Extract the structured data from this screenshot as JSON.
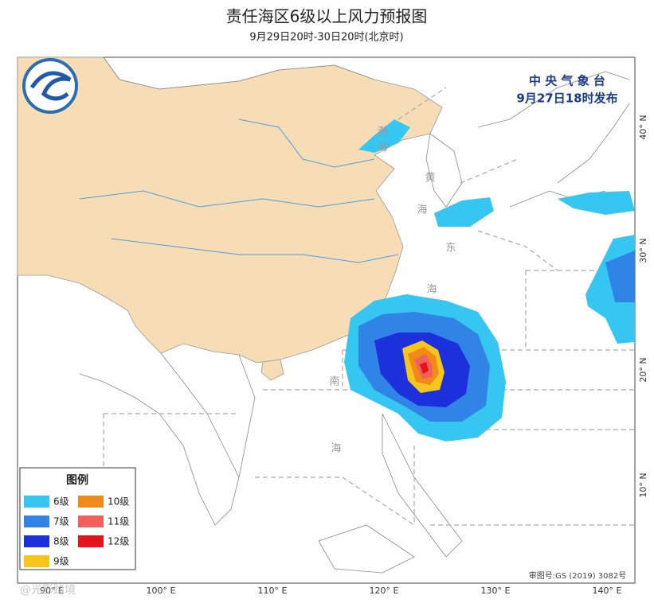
{
  "header": {
    "title": "责任海区6级以上风力预报图",
    "subtitle": "9月29日20时-30日20时(北京时)"
  },
  "issuer": {
    "agency": "中 央 气 象 台",
    "issued": "9月27日18时发布"
  },
  "map": {
    "longitude_labels": [
      "90° E",
      "100° E",
      "110° E",
      "120° E",
      "130° E",
      "140° E"
    ],
    "latitude_labels": [
      "40° N",
      "30° N",
      "20° N",
      "10° N"
    ],
    "sea_labels": [
      "渤",
      "海",
      "黄",
      "海",
      "东",
      "海",
      "南",
      "海"
    ]
  },
  "legend": {
    "title": "图例",
    "items": [
      {
        "label": "6级",
        "color": "#36c6f2"
      },
      {
        "label": "7级",
        "color": "#2f84e6"
      },
      {
        "label": "8级",
        "color": "#1c30dc"
      },
      {
        "label": "9级",
        "color": "#f6c61c"
      },
      {
        "label": "10级",
        "color": "#f08a18"
      },
      {
        "label": "11级",
        "color": "#f0605e"
      },
      {
        "label": "12级",
        "color": "#e4141a"
      }
    ]
  },
  "footer": {
    "approval": "审图号:GS (2019) 3082号",
    "watermark": "@光影踏境"
  }
}
